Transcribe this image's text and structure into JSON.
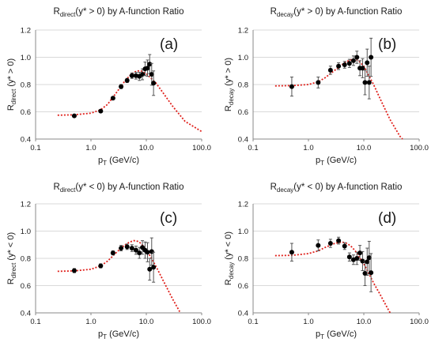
{
  "colors": {
    "axis": "#888888",
    "grid": "#d9d9d9",
    "point": "#000000",
    "fit": "#e0201b",
    "text": "#1a1a1a"
  },
  "chart_data": [
    {
      "type": "scatter",
      "panel_label": "(a)",
      "title_main": "R",
      "title_sub": "direct",
      "title_rest": "(y* > 0) by A-function Ratio",
      "ylabel_main": "R",
      "ylabel_sub": "direct",
      "ylabel_rest": " (y* > 0)",
      "xlabel_main": "p",
      "xlabel_sub": "T",
      "xlabel_rest": " (GeV/c)",
      "xscale": "log",
      "xlim": [
        0.1,
        100
      ],
      "ylim": [
        0.4,
        1.2
      ],
      "xticks": [
        "0.1",
        "1.0",
        "10.0",
        "100.0"
      ],
      "yticks": [
        "0.4",
        "0.6",
        "0.8",
        "1.0",
        "1.2"
      ],
      "grid": "horizontal",
      "series": [
        {
          "points": [
            {
              "x": 0.5,
              "y": 0.57,
              "err": 0.01
            },
            {
              "x": 1.5,
              "y": 0.605,
              "err": 0.01
            },
            {
              "x": 2.5,
              "y": 0.7,
              "err": 0.01
            },
            {
              "x": 3.5,
              "y": 0.785,
              "err": 0.015
            },
            {
              "x": 4.5,
              "y": 0.83,
              "err": 0.015
            },
            {
              "x": 5.5,
              "y": 0.865,
              "err": 0.02
            },
            {
              "x": 6.5,
              "y": 0.865,
              "err": 0.025
            },
            {
              "x": 7.5,
              "y": 0.86,
              "err": 0.03
            },
            {
              "x": 8.5,
              "y": 0.875,
              "err": 0.04
            },
            {
              "x": 9.5,
              "y": 0.915,
              "err": 0.05
            },
            {
              "x": 10.5,
              "y": 0.92,
              "err": 0.06
            },
            {
              "x": 11.5,
              "y": 0.95,
              "err": 0.07
            },
            {
              "x": 12.5,
              "y": 0.875,
              "err": 0.08
            },
            {
              "x": 13.5,
              "y": 0.81,
              "err": 0.09
            }
          ]
        },
        {
          "style": "dotted-line",
          "points": [
            {
              "x": 0.25,
              "y": 0.575
            },
            {
              "x": 0.5,
              "y": 0.578
            },
            {
              "x": 1.0,
              "y": 0.59
            },
            {
              "x": 1.5,
              "y": 0.615
            },
            {
              "x": 2.0,
              "y": 0.655
            },
            {
              "x": 3.0,
              "y": 0.75
            },
            {
              "x": 4.0,
              "y": 0.82
            },
            {
              "x": 5.0,
              "y": 0.865
            },
            {
              "x": 6.0,
              "y": 0.89
            },
            {
              "x": 7.0,
              "y": 0.9
            },
            {
              "x": 8.0,
              "y": 0.9
            },
            {
              "x": 10.0,
              "y": 0.88
            },
            {
              "x": 15.0,
              "y": 0.81
            },
            {
              "x": 20.0,
              "y": 0.74
            },
            {
              "x": 30.0,
              "y": 0.64
            },
            {
              "x": 50.0,
              "y": 0.53
            },
            {
              "x": 100.0,
              "y": 0.455
            }
          ]
        }
      ]
    },
    {
      "type": "scatter",
      "panel_label": "(b)",
      "title_main": "R",
      "title_sub": "decay",
      "title_rest": "(y* > 0) by A-function Ratio",
      "ylabel_main": "R",
      "ylabel_sub": "decay",
      "ylabel_rest": " (y* > 0)",
      "xlabel_main": "p",
      "xlabel_sub": "T",
      "xlabel_rest": " (GeV/c)",
      "xscale": "log",
      "xlim": [
        0.1,
        100
      ],
      "ylim": [
        0.4,
        1.2
      ],
      "xticks": [
        "0.1",
        "1.0",
        "10.0",
        "100.0"
      ],
      "yticks": [
        "0.4",
        "0.6",
        "0.8",
        "1.0",
        "1.2"
      ],
      "grid": "horizontal",
      "series": [
        {
          "points": [
            {
              "x": 0.5,
              "y": 0.785,
              "err": 0.07
            },
            {
              "x": 1.5,
              "y": 0.815,
              "err": 0.04
            },
            {
              "x": 2.5,
              "y": 0.905,
              "err": 0.03
            },
            {
              "x": 3.5,
              "y": 0.935,
              "err": 0.025
            },
            {
              "x": 4.5,
              "y": 0.945,
              "err": 0.025
            },
            {
              "x": 5.5,
              "y": 0.955,
              "err": 0.03
            },
            {
              "x": 6.5,
              "y": 0.975,
              "err": 0.035
            },
            {
              "x": 7.5,
              "y": 1.0,
              "err": 0.045
            },
            {
              "x": 8.5,
              "y": 0.92,
              "err": 0.055
            },
            {
              "x": 9.5,
              "y": 0.92,
              "err": 0.07
            },
            {
              "x": 10.5,
              "y": 0.815,
              "err": 0.09
            },
            {
              "x": 11.5,
              "y": 0.96,
              "err": 0.1
            },
            {
              "x": 12.5,
              "y": 0.815,
              "err": 0.12
            },
            {
              "x": 13.5,
              "y": 1.0,
              "err": 0.14
            }
          ]
        },
        {
          "style": "dotted-line",
          "points": [
            {
              "x": 0.25,
              "y": 0.79
            },
            {
              "x": 0.5,
              "y": 0.792
            },
            {
              "x": 1.0,
              "y": 0.8
            },
            {
              "x": 1.5,
              "y": 0.82
            },
            {
              "x": 2.0,
              "y": 0.85
            },
            {
              "x": 3.0,
              "y": 0.905
            },
            {
              "x": 4.0,
              "y": 0.945
            },
            {
              "x": 5.0,
              "y": 0.97
            },
            {
              "x": 6.0,
              "y": 0.983
            },
            {
              "x": 7.0,
              "y": 0.985
            },
            {
              "x": 8.0,
              "y": 0.975
            },
            {
              "x": 10.0,
              "y": 0.935
            },
            {
              "x": 15.0,
              "y": 0.8
            },
            {
              "x": 20.0,
              "y": 0.69
            },
            {
              "x": 30.0,
              "y": 0.54
            },
            {
              "x": 45.0,
              "y": 0.42
            },
            {
              "x": 50.0,
              "y": 0.4
            }
          ]
        }
      ]
    },
    {
      "type": "scatter",
      "panel_label": "(c)",
      "title_main": "R",
      "title_sub": "direct",
      "title_rest": "(y* < 0) by A-function Ratio",
      "ylabel_main": "R",
      "ylabel_sub": "direct",
      "ylabel_rest": " (y* < 0)",
      "xlabel_main": "p",
      "xlabel_sub": "T",
      "xlabel_rest": " (GeV/c)",
      "xscale": "log",
      "xlim": [
        0.1,
        100
      ],
      "ylim": [
        0.4,
        1.2
      ],
      "xticks": [
        "0.1",
        "1.0",
        "10.0",
        "100.0"
      ],
      "yticks": [
        "0.4",
        "0.6",
        "0.8",
        "1.0",
        "1.2"
      ],
      "grid": "horizontal",
      "series": [
        {
          "points": [
            {
              "x": 0.5,
              "y": 0.71,
              "err": 0.015
            },
            {
              "x": 1.5,
              "y": 0.745,
              "err": 0.015
            },
            {
              "x": 2.5,
              "y": 0.84,
              "err": 0.015
            },
            {
              "x": 3.5,
              "y": 0.875,
              "err": 0.02
            },
            {
              "x": 4.5,
              "y": 0.885,
              "err": 0.02
            },
            {
              "x": 5.5,
              "y": 0.875,
              "err": 0.025
            },
            {
              "x": 6.5,
              "y": 0.86,
              "err": 0.03
            },
            {
              "x": 7.5,
              "y": 0.84,
              "err": 0.04
            },
            {
              "x": 8.5,
              "y": 0.88,
              "err": 0.05
            },
            {
              "x": 9.5,
              "y": 0.86,
              "err": 0.06
            },
            {
              "x": 10.5,
              "y": 0.845,
              "err": 0.07
            },
            {
              "x": 11.5,
              "y": 0.72,
              "err": 0.08
            },
            {
              "x": 12.5,
              "y": 0.85,
              "err": 0.1
            },
            {
              "x": 13.5,
              "y": 0.735,
              "err": 0.11
            }
          ]
        },
        {
          "style": "dotted-line",
          "points": [
            {
              "x": 0.25,
              "y": 0.705
            },
            {
              "x": 0.5,
              "y": 0.708
            },
            {
              "x": 1.0,
              "y": 0.72
            },
            {
              "x": 1.5,
              "y": 0.745
            },
            {
              "x": 2.0,
              "y": 0.78
            },
            {
              "x": 3.0,
              "y": 0.85
            },
            {
              "x": 4.0,
              "y": 0.895
            },
            {
              "x": 5.0,
              "y": 0.92
            },
            {
              "x": 6.0,
              "y": 0.93
            },
            {
              "x": 7.0,
              "y": 0.925
            },
            {
              "x": 8.0,
              "y": 0.91
            },
            {
              "x": 10.0,
              "y": 0.865
            },
            {
              "x": 15.0,
              "y": 0.74
            },
            {
              "x": 20.0,
              "y": 0.64
            },
            {
              "x": 30.0,
              "y": 0.5
            },
            {
              "x": 40.0,
              "y": 0.41
            },
            {
              "x": 42.0,
              "y": 0.4
            }
          ]
        }
      ]
    },
    {
      "type": "scatter",
      "panel_label": "(d)",
      "title_main": "R",
      "title_sub": "decay",
      "title_rest": "(y* < 0) by A-function Ratio",
      "ylabel_main": "R",
      "ylabel_sub": "decay",
      "ylabel_rest": " (y* < 0)",
      "xlabel_main": "p",
      "xlabel_sub": "T",
      "xlabel_rest": " (GeV/c)",
      "xscale": "log",
      "xlim": [
        0.1,
        100
      ],
      "ylim": [
        0.4,
        1.2
      ],
      "xticks": [
        "0.1",
        "1.0",
        "10.0",
        "100.0"
      ],
      "yticks": [
        "0.4",
        "0.6",
        "0.8",
        "1.0",
        "1.2"
      ],
      "grid": "horizontal",
      "series": [
        {
          "points": [
            {
              "x": 0.5,
              "y": 0.845,
              "err": 0.065
            },
            {
              "x": 1.5,
              "y": 0.895,
              "err": 0.04
            },
            {
              "x": 2.5,
              "y": 0.91,
              "err": 0.03
            },
            {
              "x": 3.5,
              "y": 0.93,
              "err": 0.025
            },
            {
              "x": 4.5,
              "y": 0.89,
              "err": 0.025
            },
            {
              "x": 5.5,
              "y": 0.81,
              "err": 0.03
            },
            {
              "x": 6.5,
              "y": 0.79,
              "err": 0.035
            },
            {
              "x": 7.5,
              "y": 0.8,
              "err": 0.045
            },
            {
              "x": 8.5,
              "y": 0.84,
              "err": 0.055
            },
            {
              "x": 9.5,
              "y": 0.78,
              "err": 0.07
            },
            {
              "x": 10.5,
              "y": 0.69,
              "err": 0.09
            },
            {
              "x": 11.5,
              "y": 0.775,
              "err": 0.1
            },
            {
              "x": 12.5,
              "y": 0.805,
              "err": 0.12
            },
            {
              "x": 13.5,
              "y": 0.695,
              "err": 0.14
            }
          ]
        },
        {
          "style": "dotted-line",
          "points": [
            {
              "x": 0.25,
              "y": 0.82
            },
            {
              "x": 0.5,
              "y": 0.822
            },
            {
              "x": 1.0,
              "y": 0.835
            },
            {
              "x": 1.5,
              "y": 0.855
            },
            {
              "x": 2.0,
              "y": 0.88
            },
            {
              "x": 3.0,
              "y": 0.91
            },
            {
              "x": 4.0,
              "y": 0.92
            },
            {
              "x": 5.0,
              "y": 0.91
            },
            {
              "x": 6.0,
              "y": 0.885
            },
            {
              "x": 7.0,
              "y": 0.855
            },
            {
              "x": 8.0,
              "y": 0.82
            },
            {
              "x": 10.0,
              "y": 0.76
            },
            {
              "x": 15.0,
              "y": 0.62
            },
            {
              "x": 20.0,
              "y": 0.53
            },
            {
              "x": 28.0,
              "y": 0.42
            },
            {
              "x": 30.0,
              "y": 0.4
            }
          ]
        }
      ]
    }
  ]
}
